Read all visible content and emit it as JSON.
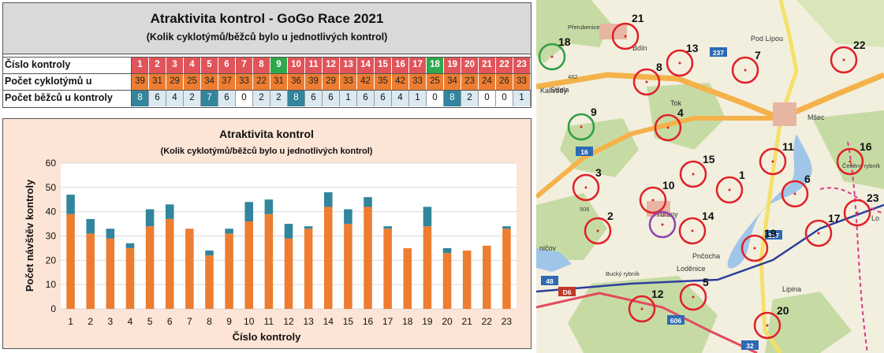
{
  "table": {
    "title": "Atraktivita kontrol - GoGo Race 2021",
    "subtitle": "(Kolik cyklotýmů/běžců  bylo u jednotlivých kontrol)",
    "rows": [
      {
        "label": "Číslo kontroly",
        "cells": [
          "1",
          "2",
          "3",
          "4",
          "5",
          "6",
          "7",
          "8",
          "9",
          "10",
          "11",
          "12",
          "13",
          "14",
          "15",
          "16",
          "17",
          "18",
          "19",
          "20",
          "21",
          "22",
          "23"
        ]
      },
      {
        "label": "Počet cyklotýmů u kontroly",
        "cells": [
          "39",
          "31",
          "29",
          "25",
          "34",
          "37",
          "33",
          "22",
          "31",
          "36",
          "39",
          "29",
          "33",
          "42",
          "35",
          "42",
          "33",
          "25",
          "34",
          "23",
          "24",
          "26",
          "33"
        ]
      },
      {
        "label": "Počet běžců u kontroly",
        "cells": [
          "8",
          "6",
          "4",
          "2",
          "7",
          "6",
          "0",
          "2",
          "2",
          "8",
          "6",
          "6",
          "1",
          "6",
          "6",
          "4",
          "1",
          "0",
          "8",
          "2",
          "0",
          "0",
          "1"
        ]
      }
    ],
    "colors": {
      "header_bg": "#d9d9d9",
      "control_red": "#e0545a",
      "control_green": "#2ea84c",
      "cyclist_orange": "#ed7d31",
      "runner_teal": "#31859c",
      "runner_light": "#dae9f2"
    }
  },
  "chart_data": {
    "type": "bar",
    "stacked": true,
    "title": "Atraktivita kontrol",
    "subtitle": "(Kolik cyklotýmů/běžců bylo u jednotlivých kontrol)",
    "xlabel": "Číslo kontroly",
    "ylabel": "Počet návštěv kontroly",
    "ylim": [
      0,
      60
    ],
    "yticks": [
      "0",
      "10",
      "20",
      "30",
      "40",
      "50",
      "60"
    ],
    "grid": true,
    "categories": [
      "1",
      "2",
      "3",
      "4",
      "5",
      "6",
      "7",
      "8",
      "9",
      "10",
      "11",
      "12",
      "13",
      "14",
      "15",
      "16",
      "17",
      "18",
      "19",
      "20",
      "21",
      "22",
      "23"
    ],
    "series": [
      {
        "values": [
          39,
          31,
          29,
          25,
          34,
          37,
          33,
          22,
          31,
          36,
          39,
          29,
          33,
          42,
          35,
          42,
          33,
          25,
          34,
          23,
          24,
          26,
          33
        ],
        "color": "#ed7d31"
      },
      {
        "values": [
          8,
          6,
          4,
          2,
          7,
          6,
          0,
          2,
          2,
          8,
          6,
          6,
          1,
          6,
          6,
          4,
          1,
          0,
          8,
          2,
          0,
          0,
          1
        ],
        "color": "#31859c"
      }
    ]
  },
  "map": {
    "places": [
      "Přerubenice",
      "Bdín",
      "Pod Lípou",
      "Střela",
      "Kalivody",
      "Mšec",
      "Tok",
      "Čeněný rybník",
      "Tuřany",
      "Pnčocha",
      "Loděnice",
      "Lipina",
      "Bucký rybník",
      "ničov",
      "Lo"
    ],
    "road_labels": [
      "237",
      "16",
      "237",
      "D6",
      "606",
      "48",
      "32"
    ],
    "elevations": [
      "482",
      "506"
    ],
    "controls": [
      {
        "num": "21",
        "type": "red"
      },
      {
        "num": "18",
        "type": "green"
      },
      {
        "num": "13",
        "type": "red"
      },
      {
        "num": "7",
        "type": "red"
      },
      {
        "num": "22",
        "type": "red"
      },
      {
        "num": "8",
        "type": "red"
      },
      {
        "num": "9",
        "type": "green"
      },
      {
        "num": "4",
        "type": "red"
      },
      {
        "num": "11",
        "type": "red"
      },
      {
        "num": "16",
        "type": "red"
      },
      {
        "num": "15",
        "type": "red"
      },
      {
        "num": "3",
        "type": "red"
      },
      {
        "num": "1",
        "type": "red"
      },
      {
        "num": "10",
        "type": "red"
      },
      {
        "num": "6",
        "type": "red"
      },
      {
        "num": "23",
        "type": "red"
      },
      {
        "num": "2",
        "type": "red"
      },
      {
        "num": "14",
        "type": "red"
      },
      {
        "num": "",
        "type": "purple"
      },
      {
        "num": "17",
        "type": "red"
      },
      {
        "num": "19",
        "type": "red"
      },
      {
        "num": "12",
        "type": "red"
      },
      {
        "num": "5",
        "type": "red"
      },
      {
        "num": "20",
        "type": "red"
      }
    ]
  }
}
